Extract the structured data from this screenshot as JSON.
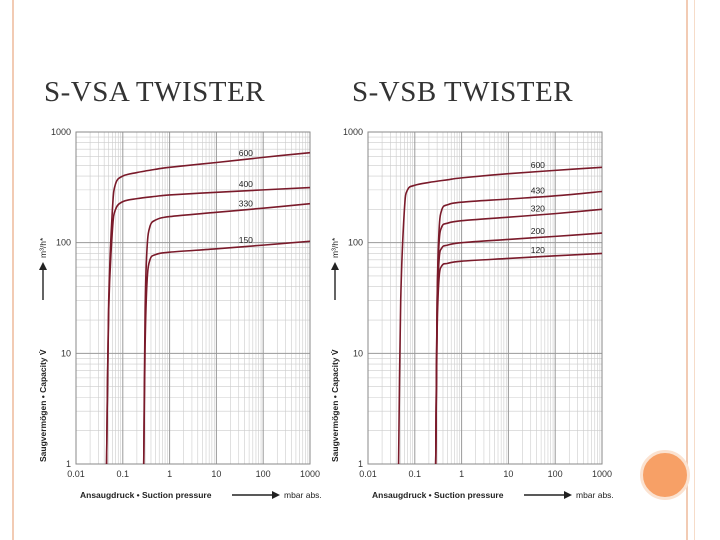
{
  "slide": {
    "left_title": "S-VSA TWISTER",
    "right_title": "S-VSB TWISTER"
  },
  "colors": {
    "curve": "#7a1a2a",
    "grid_major": "#9a9a9a",
    "grid_minor": "#cccccc",
    "accent_circle": "#f7a066",
    "frame": "#f2cbb4"
  },
  "chart_data": [
    {
      "type": "line",
      "title": "",
      "x_scale": "log",
      "y_scale": "log",
      "xlim": [
        0.01,
        1000
      ],
      "ylim": [
        1,
        1000
      ],
      "x_ticks": [
        "0.01",
        "0.1",
        "1",
        "10",
        "100",
        "1000"
      ],
      "y_ticks": [
        "1000",
        "100",
        "10",
        "1"
      ],
      "xlabel": "Ansaugdruck • Suction pressure",
      "xunit": "mbar abs.",
      "ylabel": "Saugvermögen • Capacity V̇",
      "yunit": "m³/h*",
      "grid": true,
      "series": [
        {
          "name": "600",
          "x": [
            0.045,
            0.05,
            0.06,
            0.07,
            0.1,
            0.2,
            0.5,
            1,
            10,
            100,
            1000
          ],
          "y": [
            1,
            30,
            200,
            340,
            400,
            430,
            460,
            480,
            530,
            590,
            650
          ]
        },
        {
          "name": "400",
          "x": [
            0.045,
            0.05,
            0.06,
            0.07,
            0.1,
            0.2,
            0.5,
            1,
            10,
            100,
            1000
          ],
          "y": [
            1,
            25,
            130,
            200,
            235,
            250,
            262,
            270,
            285,
            300,
            315
          ]
        },
        {
          "name": "330",
          "x": [
            0.28,
            0.3,
            0.33,
            0.38,
            0.5,
            1,
            10,
            100,
            1000
          ],
          "y": [
            1,
            25,
            90,
            140,
            160,
            172,
            188,
            205,
            225
          ]
        },
        {
          "name": "150",
          "x": [
            0.28,
            0.3,
            0.33,
            0.38,
            0.5,
            1,
            10,
            100,
            1000
          ],
          "y": [
            1,
            12,
            45,
            70,
            78,
            82,
            88,
            95,
            103
          ]
        }
      ]
    },
    {
      "type": "line",
      "title": "",
      "x_scale": "log",
      "y_scale": "log",
      "xlim": [
        0.01,
        1000
      ],
      "ylim": [
        1,
        1000
      ],
      "x_ticks": [
        "0.01",
        "0.1",
        "1",
        "10",
        "100",
        "1000"
      ],
      "y_ticks": [
        "1000",
        "100",
        "10",
        "1"
      ],
      "xlabel": "Ansaugdruck • Suction pressure",
      "xunit": "mbar abs.",
      "ylabel": "Saugvermögen • Capacity V̇",
      "yunit": "m³/h*",
      "grid": true,
      "series": [
        {
          "name": "600",
          "x": [
            0.045,
            0.05,
            0.06,
            0.07,
            0.1,
            0.2,
            0.5,
            1,
            10,
            100,
            1000
          ],
          "y": [
            1,
            30,
            200,
            300,
            330,
            350,
            370,
            385,
            420,
            450,
            480
          ]
        },
        {
          "name": "430",
          "x": [
            0.28,
            0.3,
            0.33,
            0.38,
            0.5,
            1,
            10,
            100,
            1000
          ],
          "y": [
            1,
            30,
            130,
            200,
            220,
            232,
            248,
            265,
            290
          ]
        },
        {
          "name": "320",
          "x": [
            0.28,
            0.3,
            0.33,
            0.38,
            0.5,
            1,
            10,
            100,
            1000
          ],
          "y": [
            1,
            28,
            100,
            140,
            150,
            158,
            170,
            183,
            200
          ]
        },
        {
          "name": "200",
          "x": [
            0.28,
            0.3,
            0.33,
            0.38,
            0.5,
            1,
            10,
            100,
            1000
          ],
          "y": [
            1,
            22,
            70,
            90,
            95,
            100,
            107,
            114,
            122
          ]
        },
        {
          "name": "120",
          "x": [
            0.28,
            0.3,
            0.33,
            0.38,
            0.5,
            1,
            10,
            100,
            1000
          ],
          "y": [
            1,
            16,
            48,
            62,
            65,
            68,
            72,
            76,
            80
          ]
        }
      ]
    }
  ]
}
